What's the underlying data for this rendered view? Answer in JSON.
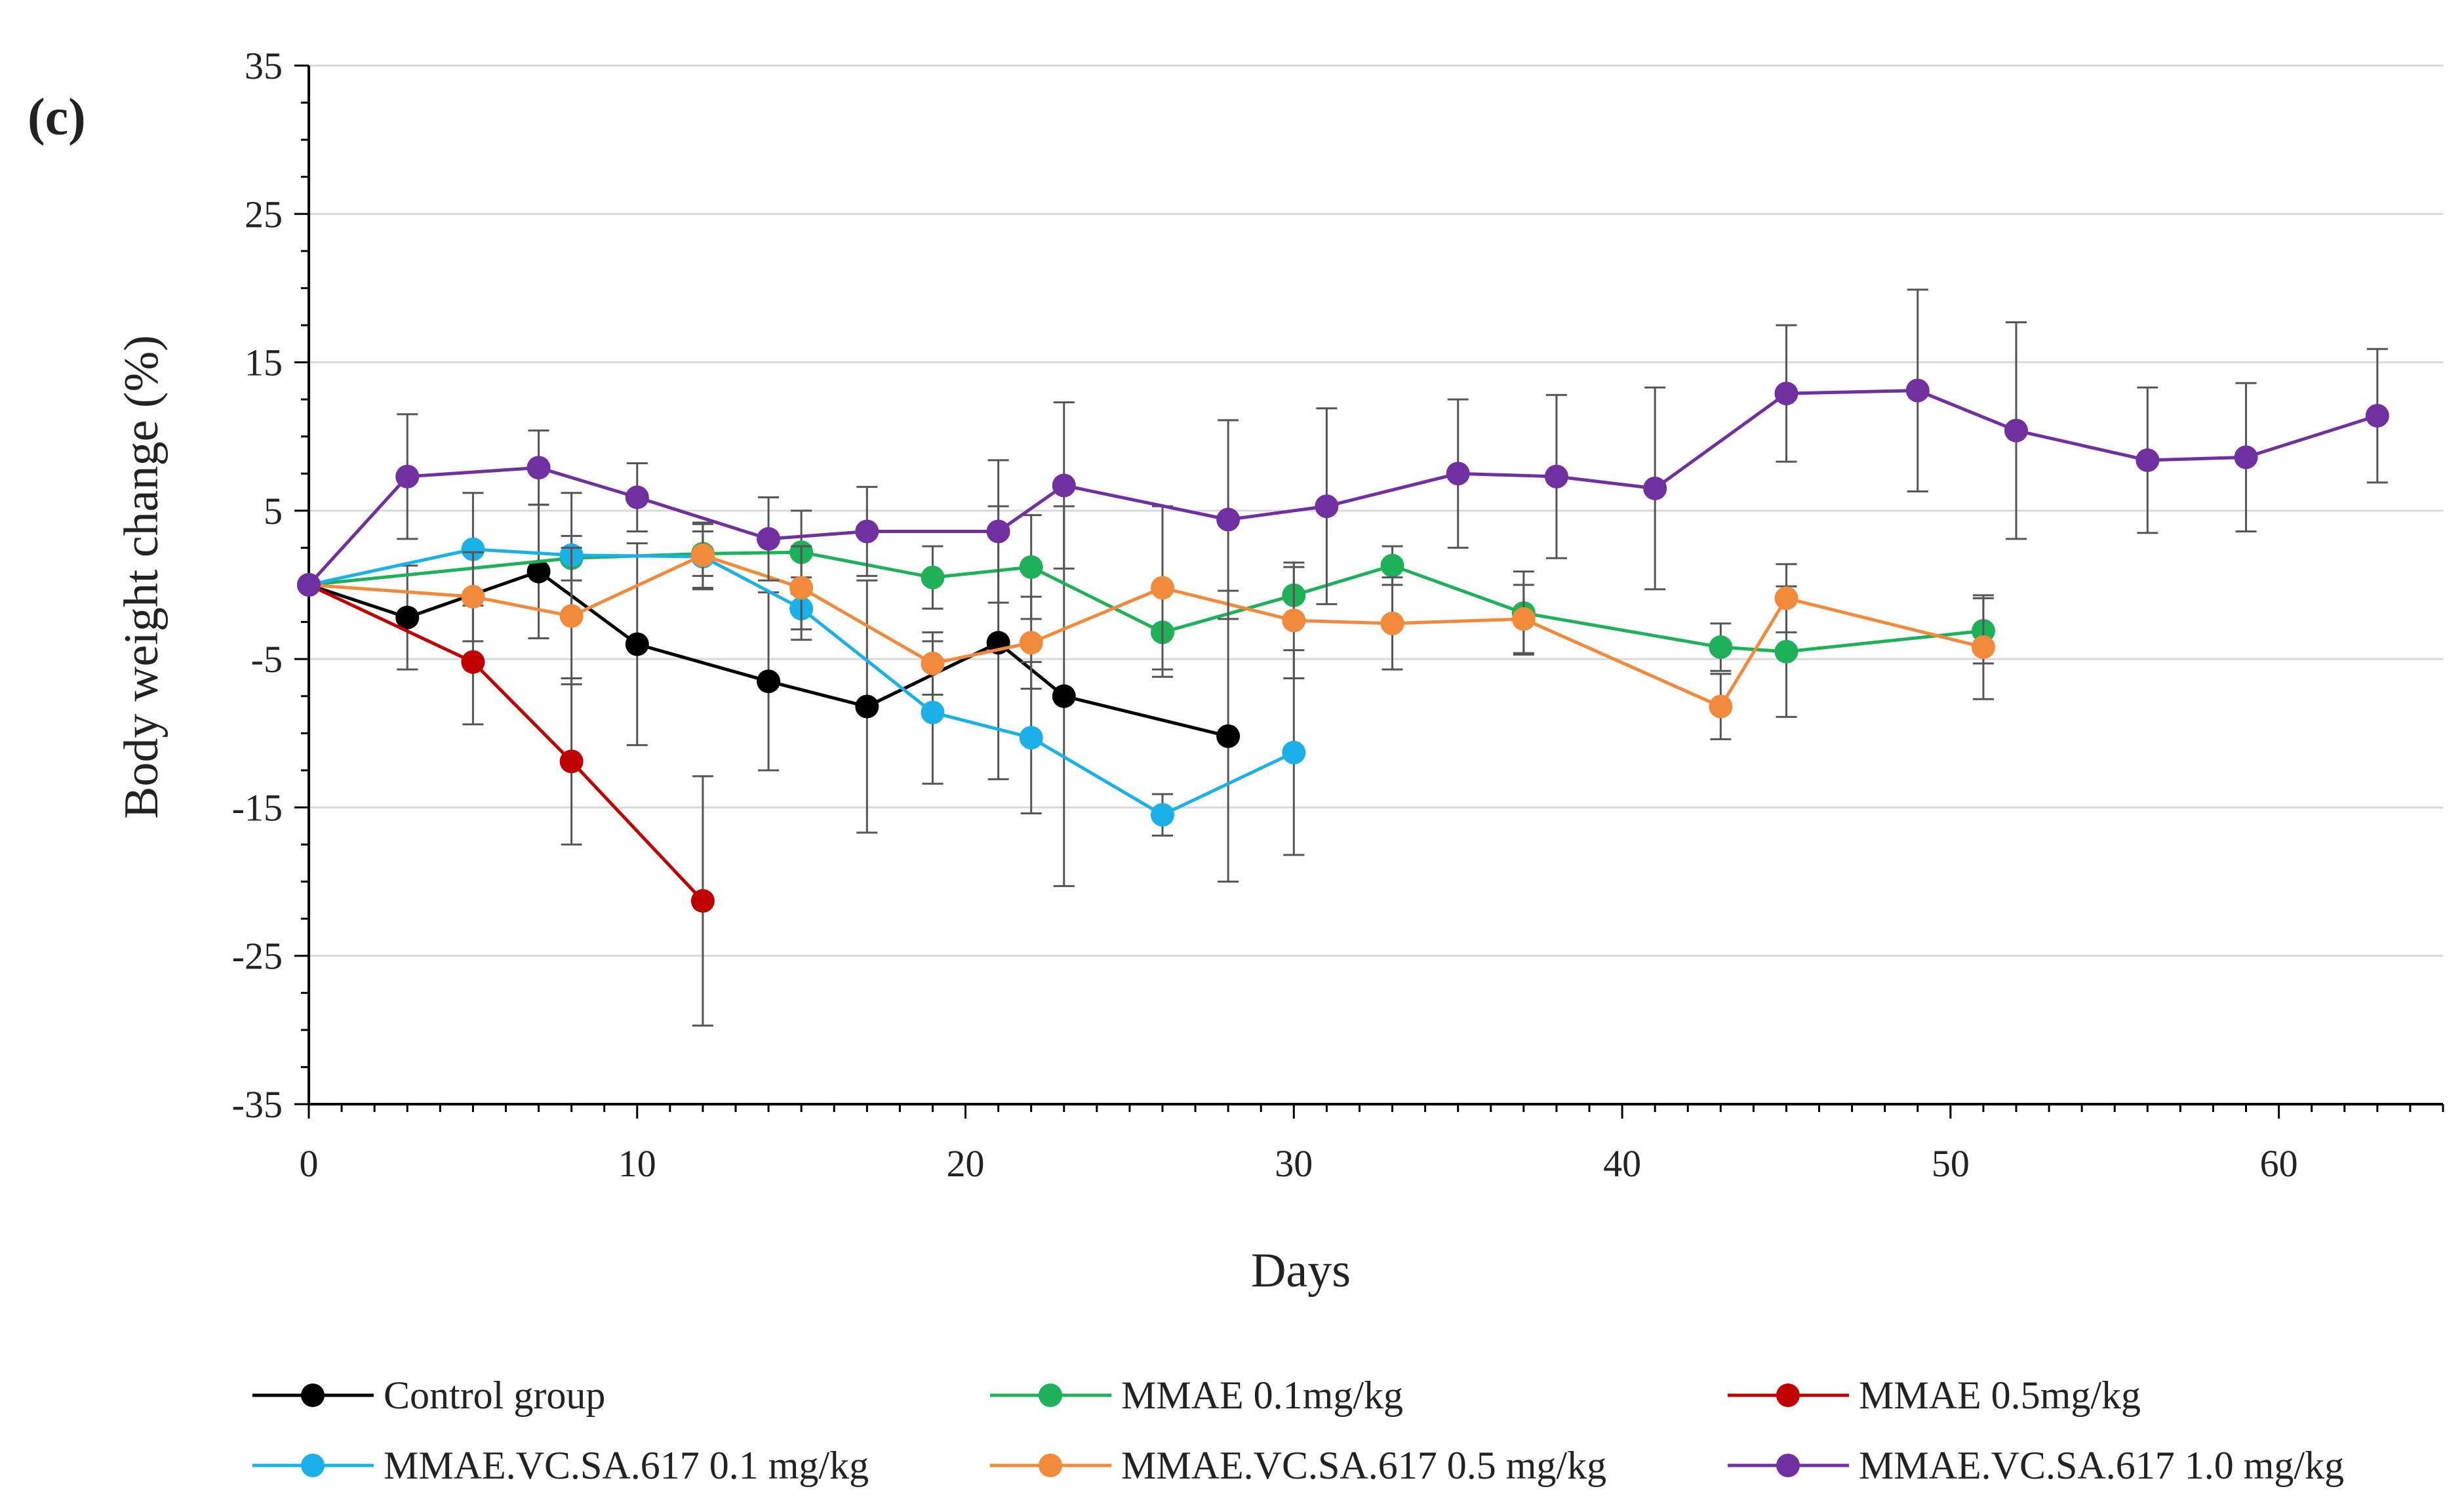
{
  "chart_data": {
    "type": "line",
    "panel_label": "(c)",
    "xlabel": "Days",
    "ylabel": "Body weight change (%)",
    "xlim": [
      0,
      65
    ],
    "ylim": [
      -35,
      35
    ],
    "x_ticks": [
      0,
      10,
      20,
      30,
      40,
      50,
      60
    ],
    "y_ticks": [
      35,
      25,
      15,
      5,
      -5,
      -15,
      -25,
      -35
    ],
    "grid": "horizontal",
    "legend_position": "bottom",
    "series": [
      {
        "name": "Control group",
        "color": "#000000",
        "x": [
          0,
          3,
          7,
          10,
          14,
          17,
          21,
          23,
          28
        ],
        "y": [
          0,
          -2.2,
          0.9,
          -4,
          -6.5,
          -8.2,
          -3.9,
          -7.5,
          -10.2
        ],
        "err": [
          0,
          3.5,
          4.5,
          6.8,
          6,
          8.5,
          9.2,
          12.8,
          9.8
        ]
      },
      {
        "name": "MMAE 0.1mg/kg",
        "color": "#1EB15A",
        "x": [
          0,
          8,
          12,
          15,
          19,
          22,
          26,
          30,
          33,
          37,
          43,
          45,
          51
        ],
        "y": [
          0,
          1.8,
          2.1,
          2.2,
          0.5,
          1.2,
          -3.2,
          -0.7,
          1.3,
          -1.9,
          -4.2,
          -4.5,
          -3.1
        ],
        "err": [
          0,
          1.5,
          1.5,
          2.8,
          2.1,
          3.5,
          3,
          1.9,
          1.3,
          2.8,
          1.6,
          4.4,
          2.2
        ]
      },
      {
        "name": "MMAE 0.5mg/kg",
        "color": "#C00000",
        "x": [
          0,
          5,
          8,
          12
        ],
        "y": [
          0,
          -5.2,
          -11.9,
          -21.3
        ],
        "err": [
          0,
          4.2,
          5.6,
          8.4
        ]
      },
      {
        "name": "MMAE.VC.SA.617 0.1 mg/kg",
        "color": "#1CB0E8",
        "x": [
          0,
          5,
          8,
          12,
          15,
          19,
          22,
          26,
          30
        ],
        "y": [
          0,
          2.4,
          2,
          1.9,
          -1.6,
          -8.6,
          -10.3,
          -15.5,
          -11.3
        ],
        "err": [
          0,
          3.8,
          4.2,
          2.2,
          2.1,
          4.8,
          5.1,
          1.4,
          6.9
        ]
      },
      {
        "name": "MMAE.VC.SA.617 0.5 mg/kg",
        "color": "#F28A3C",
        "x": [
          0,
          5,
          8,
          12,
          15,
          19,
          22,
          26,
          30,
          33,
          37,
          43,
          45,
          51
        ],
        "y": [
          0,
          -0.8,
          -2.1,
          2,
          -0.2,
          -5.3,
          -3.9,
          -0.2,
          -2.4,
          -2.6,
          -2.3,
          -8.2,
          -0.9,
          -4.2
        ],
        "err": [
          0,
          3,
          4.6,
          2.2,
          2.8,
          2.1,
          3.1,
          5.5,
          3.9,
          3.1,
          2.3,
          2.2,
          2.3,
          3.5
        ]
      },
      {
        "name": "MMAE.VC.SA.617 1.0 mg/kg",
        "color": "#7030A0",
        "x": [
          0,
          3,
          7,
          10,
          14,
          17,
          21,
          23,
          28,
          31,
          35,
          38,
          41,
          45,
          49,
          52,
          56,
          59,
          63
        ],
        "y": [
          0,
          7.3,
          7.9,
          5.9,
          3.1,
          3.6,
          3.6,
          6.7,
          4.4,
          5.3,
          7.5,
          7.3,
          6.5,
          12.9,
          13.1,
          10.4,
          8.4,
          8.6,
          11.4
        ],
        "err": [
          0,
          4.2,
          2.5,
          2.3,
          2.8,
          3,
          4.8,
          5.6,
          6.7,
          6.6,
          5,
          5.5,
          6.8,
          4.6,
          6.8,
          7.3,
          4.9,
          5,
          4.5
        ]
      }
    ]
  }
}
